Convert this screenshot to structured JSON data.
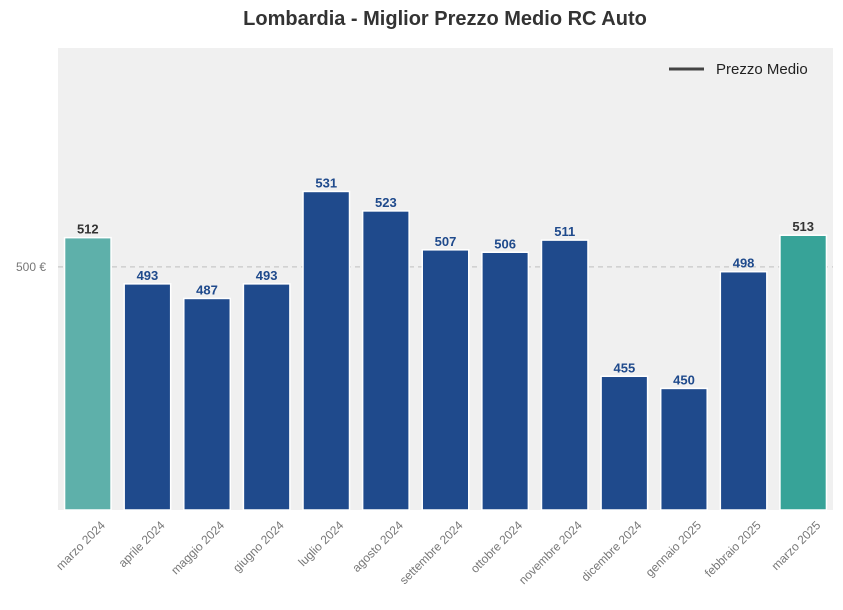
{
  "chart_data": {
    "type": "bar",
    "title": "Lombardia - Miglior Prezzo Medio RC Auto",
    "categories": [
      "marzo 2024",
      "aprile 2024",
      "maggio 2024",
      "giugno 2024",
      "luglio 2024",
      "agosto 2024",
      "settembre 2024",
      "ottobre 2024",
      "novembre 2024",
      "dicembre 2024",
      "gennaio 2025",
      "febbraio 2025",
      "marzo 2025"
    ],
    "values": [
      512,
      493,
      487,
      493,
      531,
      523,
      507,
      506,
      511,
      455,
      450,
      498,
      513
    ],
    "data_labels": [
      "512",
      "493",
      "487",
      "493",
      "531",
      "523",
      "507",
      "506",
      "511",
      "455",
      "450",
      "498",
      "513"
    ],
    "ylim": [
      400,
      590
    ],
    "yticks": [
      {
        "value": 500,
        "label": "500 €"
      }
    ],
    "legend": {
      "label": "Prezzo Medio",
      "position": "top-right"
    },
    "grid": true,
    "colors": {
      "default_bar": "#1f4a8c",
      "default_label": "#1f4a8c",
      "first_bar": "#5eb0aa",
      "last_bar": "#37a398",
      "highlight_label": "#333333",
      "plot_bg": "#f0f0f0",
      "reference_line": "#c8c8c8"
    },
    "highlighted_indices": [
      0,
      12
    ],
    "xlabel": "",
    "ylabel": ""
  }
}
